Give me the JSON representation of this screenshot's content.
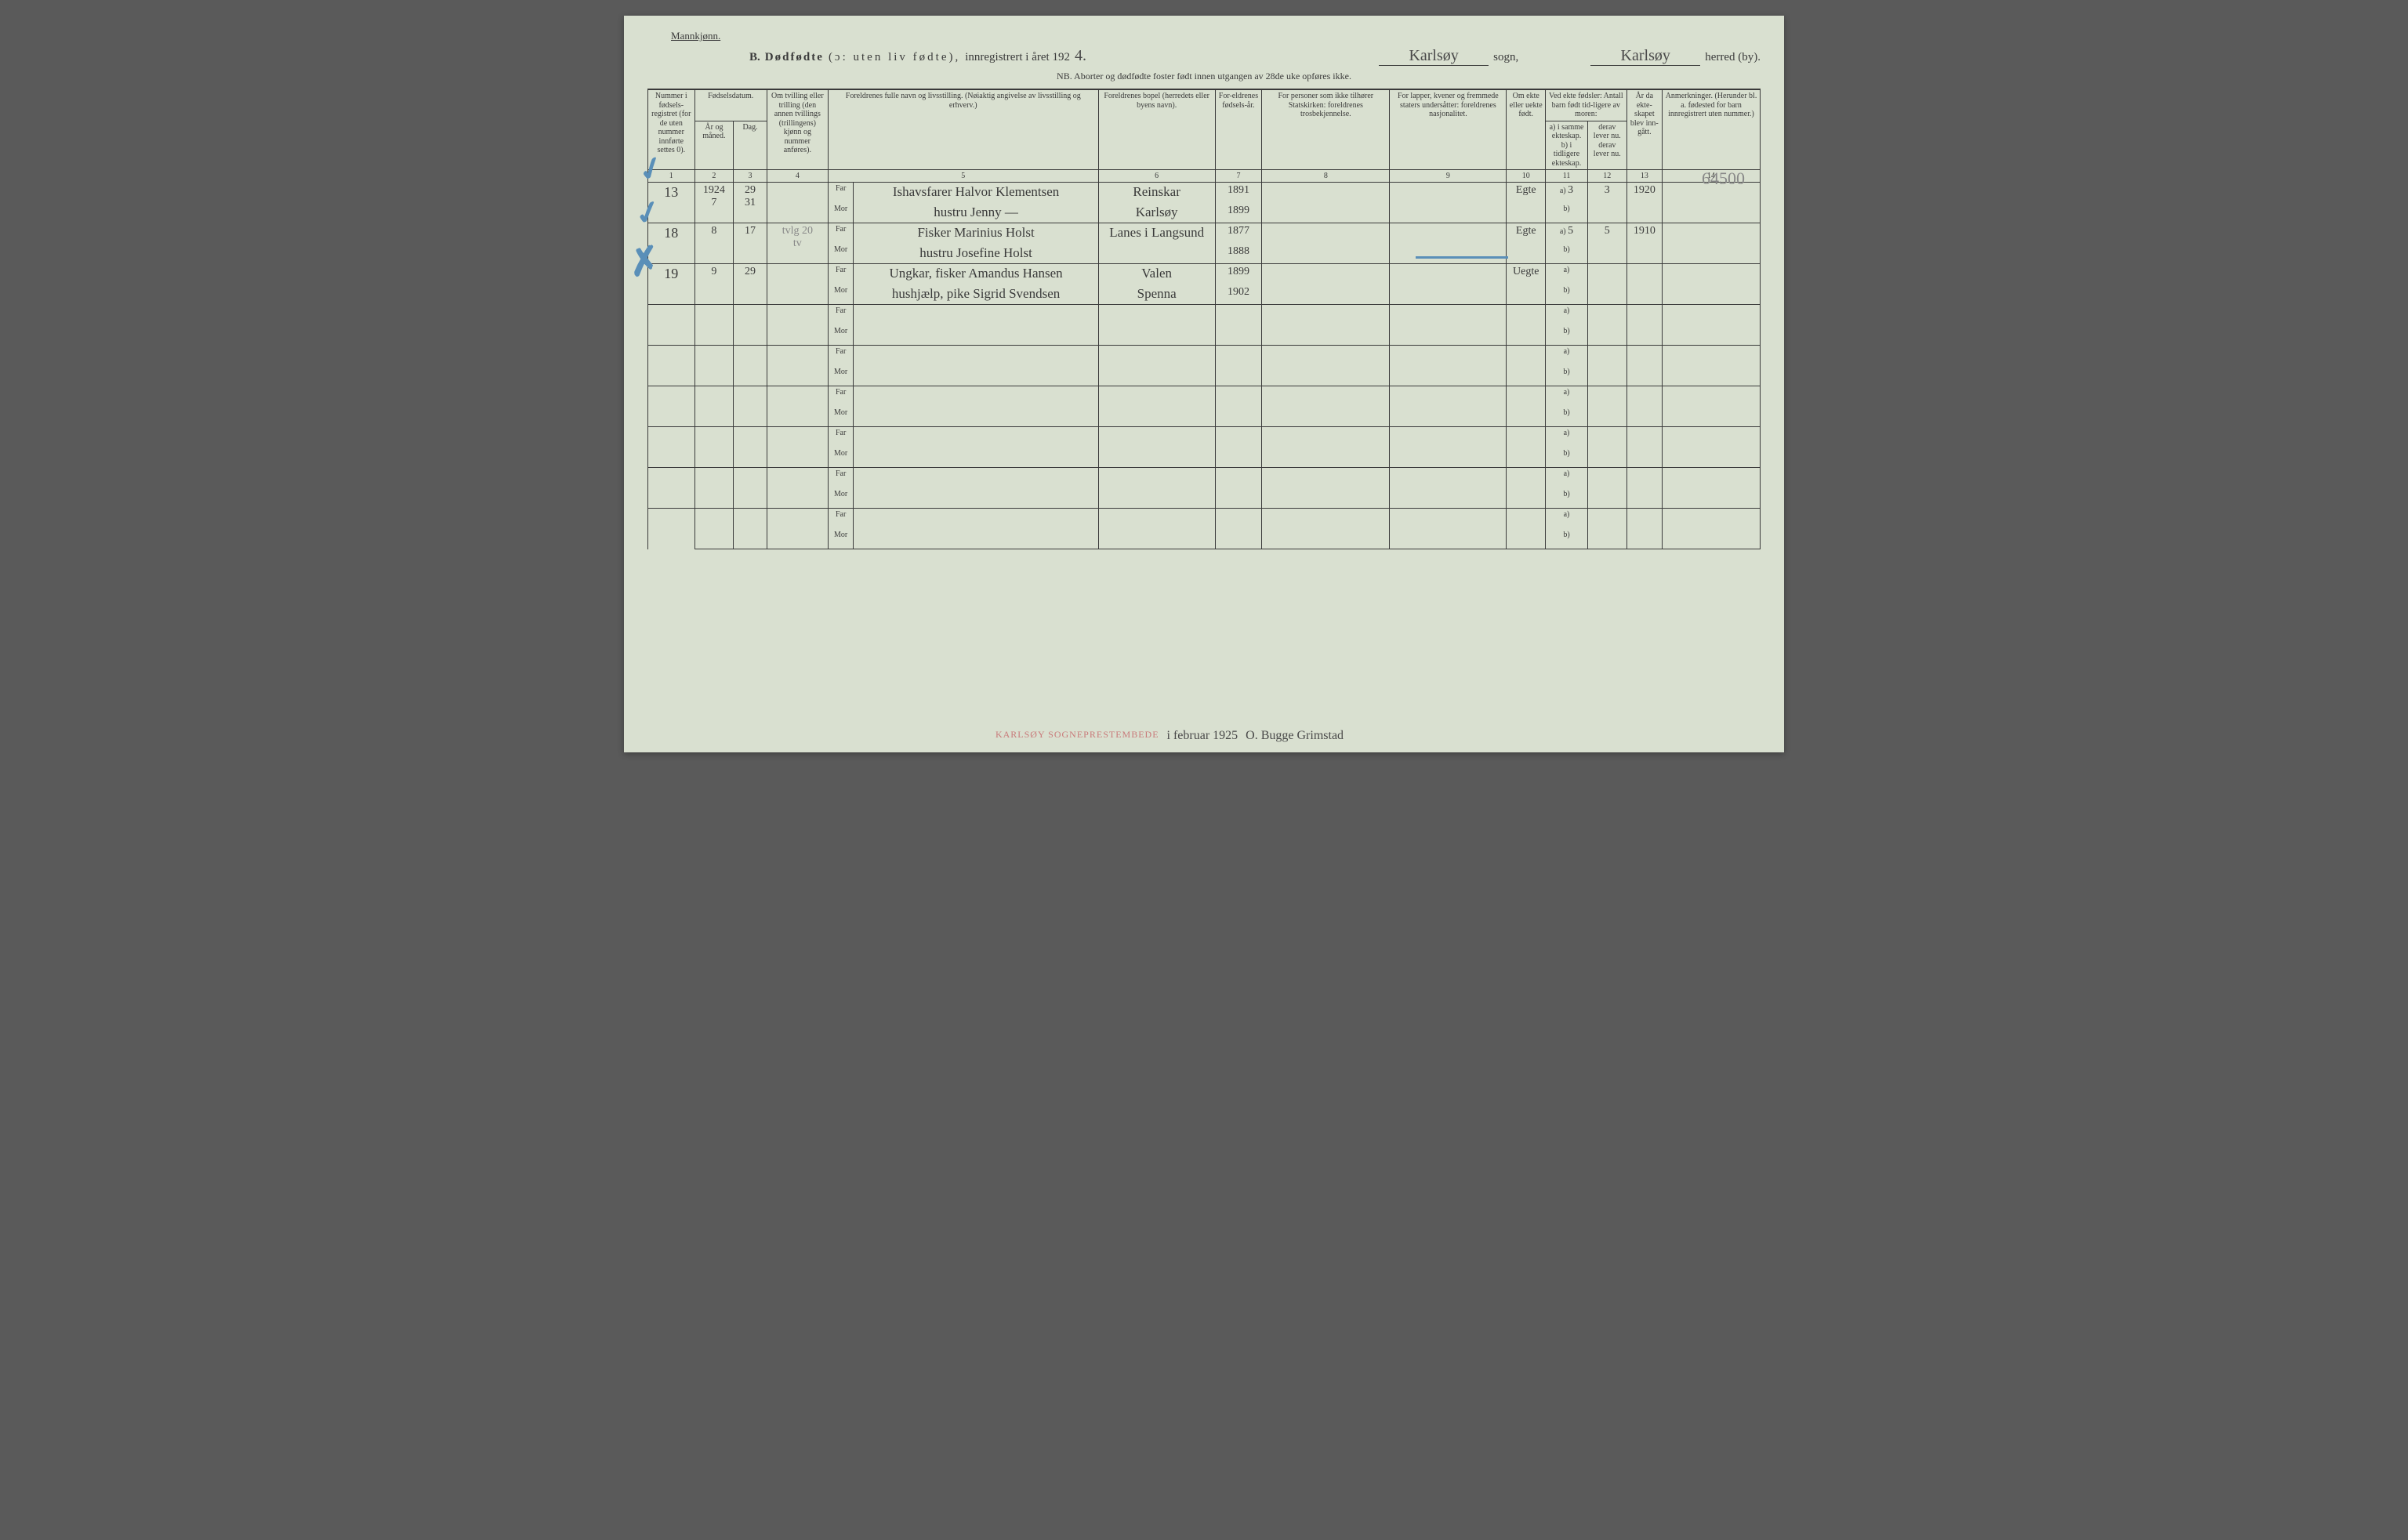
{
  "header": {
    "gender_label": "Mannkjønn.",
    "section_letter": "B.",
    "title_bold": "Dødfødte",
    "title_paren": "(ɔ: uten liv fødte),",
    "title_rest": "innregistrert i året 192",
    "year_suffix": "4.",
    "sogn_value": "Karlsøy",
    "sogn_label": "sogn,",
    "herred_value": "Karlsøy",
    "herred_label": "herred (by).",
    "nb_line": "NB. Aborter og dødfødte foster født innen utgangen av 28de uke opføres ikke."
  },
  "columns": {
    "c1": "Nummer i fødsels-registret (for de uten nummer innførte settes 0).",
    "c2_top": "Fødselsdatum.",
    "c2a": "År og måned.",
    "c2b": "Dag.",
    "c4": "Om tvilling eller trilling (den annen tvillings (trillingens) kjønn og nummer anføres).",
    "c5": "Foreldrenes fulle navn og livsstilling. (Nøiaktig angivelse av livsstilling og erhverv.)",
    "c6": "Foreldrenes bopel (herredets eller byens navn).",
    "c7": "For-eldrenes fødsels-år.",
    "c8": "For personer som ikke tilhører Statskirken: foreldrenes trosbekjennelse.",
    "c9": "For lapper, kvener og fremmede staters undersåtter: foreldrenes nasjonalitet.",
    "c10": "Om ekte eller uekte født.",
    "c11_12_top": "Ved ekte fødsler: Antall barn født tid-ligere av moren:",
    "c11": "a) i samme ekteskap. b) i tidligere ekteskap.",
    "c12": "derav lever nu. derav lever nu.",
    "c13": "År da ekte-skapet blev inn-gått.",
    "c14": "Anmerkninger. (Herunder bl. a. fødested for barn innregistrert uten nummer.)"
  },
  "colnums": [
    "1",
    "2",
    "3",
    "4",
    "5",
    "6",
    "7",
    "8",
    "9",
    "10",
    "11",
    "12",
    "13",
    "14"
  ],
  "far_label": "Far",
  "mor_label": "Mor",
  "ab_a": "a)",
  "ab_b": "b)",
  "rows": [
    {
      "num": "13",
      "year_month": "1924\n7",
      "day": "29\n31",
      "day_strike": true,
      "far_name": "Ishavsfarer Halvor Klementsen",
      "far_bopel": "Reinskar",
      "far_year": "1891",
      "mor_name": "hustru Jenny —",
      "mor_bopel": "Karlsøy",
      "mor_year": "1899",
      "ekte": "Egte",
      "c11a": "3",
      "c12": "3",
      "c13": "1920",
      "note": "64500"
    },
    {
      "num": "18",
      "year_month": "8",
      "day": "17",
      "twin": "tvlg 20\ntv",
      "far_name": "Fisker Marinius Holst",
      "far_bopel": "Lanes i Langsund",
      "far_year": "1877",
      "mor_name": "hustru Josefine Holst",
      "mor_bopel": "",
      "mor_year": "1888",
      "ekte": "Egte",
      "c11a": "5",
      "c12": "5",
      "c13": "1910"
    },
    {
      "num": "19",
      "year_month": "9",
      "day": "29",
      "far_name": "Ungkar, fisker Amandus Hansen",
      "far_bopel": "Valen",
      "far_year": "1899",
      "mor_name": "hushjælp, pike Sigrid Svendsen",
      "mor_bopel": "Spenna",
      "mor_year": "1902",
      "ekte": "Uegte"
    }
  ],
  "empty_rows": 6,
  "footer": {
    "stamp": "KARLSØY SOGNEPRESTEMBEDE",
    "date_hw": "i februar 1925",
    "sign": "O. Bugge Grimstad"
  },
  "styling": {
    "paper_bg": "#d9e0d0",
    "ink": "#3a3a3a",
    "blue_pencil": "#5a8fb8",
    "stamp_red": "#c97a7a",
    "pencil_gray": "#888888",
    "fontsize_header": 15,
    "fontsize_cell": 10,
    "fontsize_handwriting": 17,
    "col_widths_pct": [
      4.2,
      3.5,
      3.0,
      5.5,
      2.3,
      22.0,
      10.5,
      4.2,
      11.5,
      10.5,
      3.5,
      3.8,
      3.5,
      3.2,
      8.8
    ]
  }
}
